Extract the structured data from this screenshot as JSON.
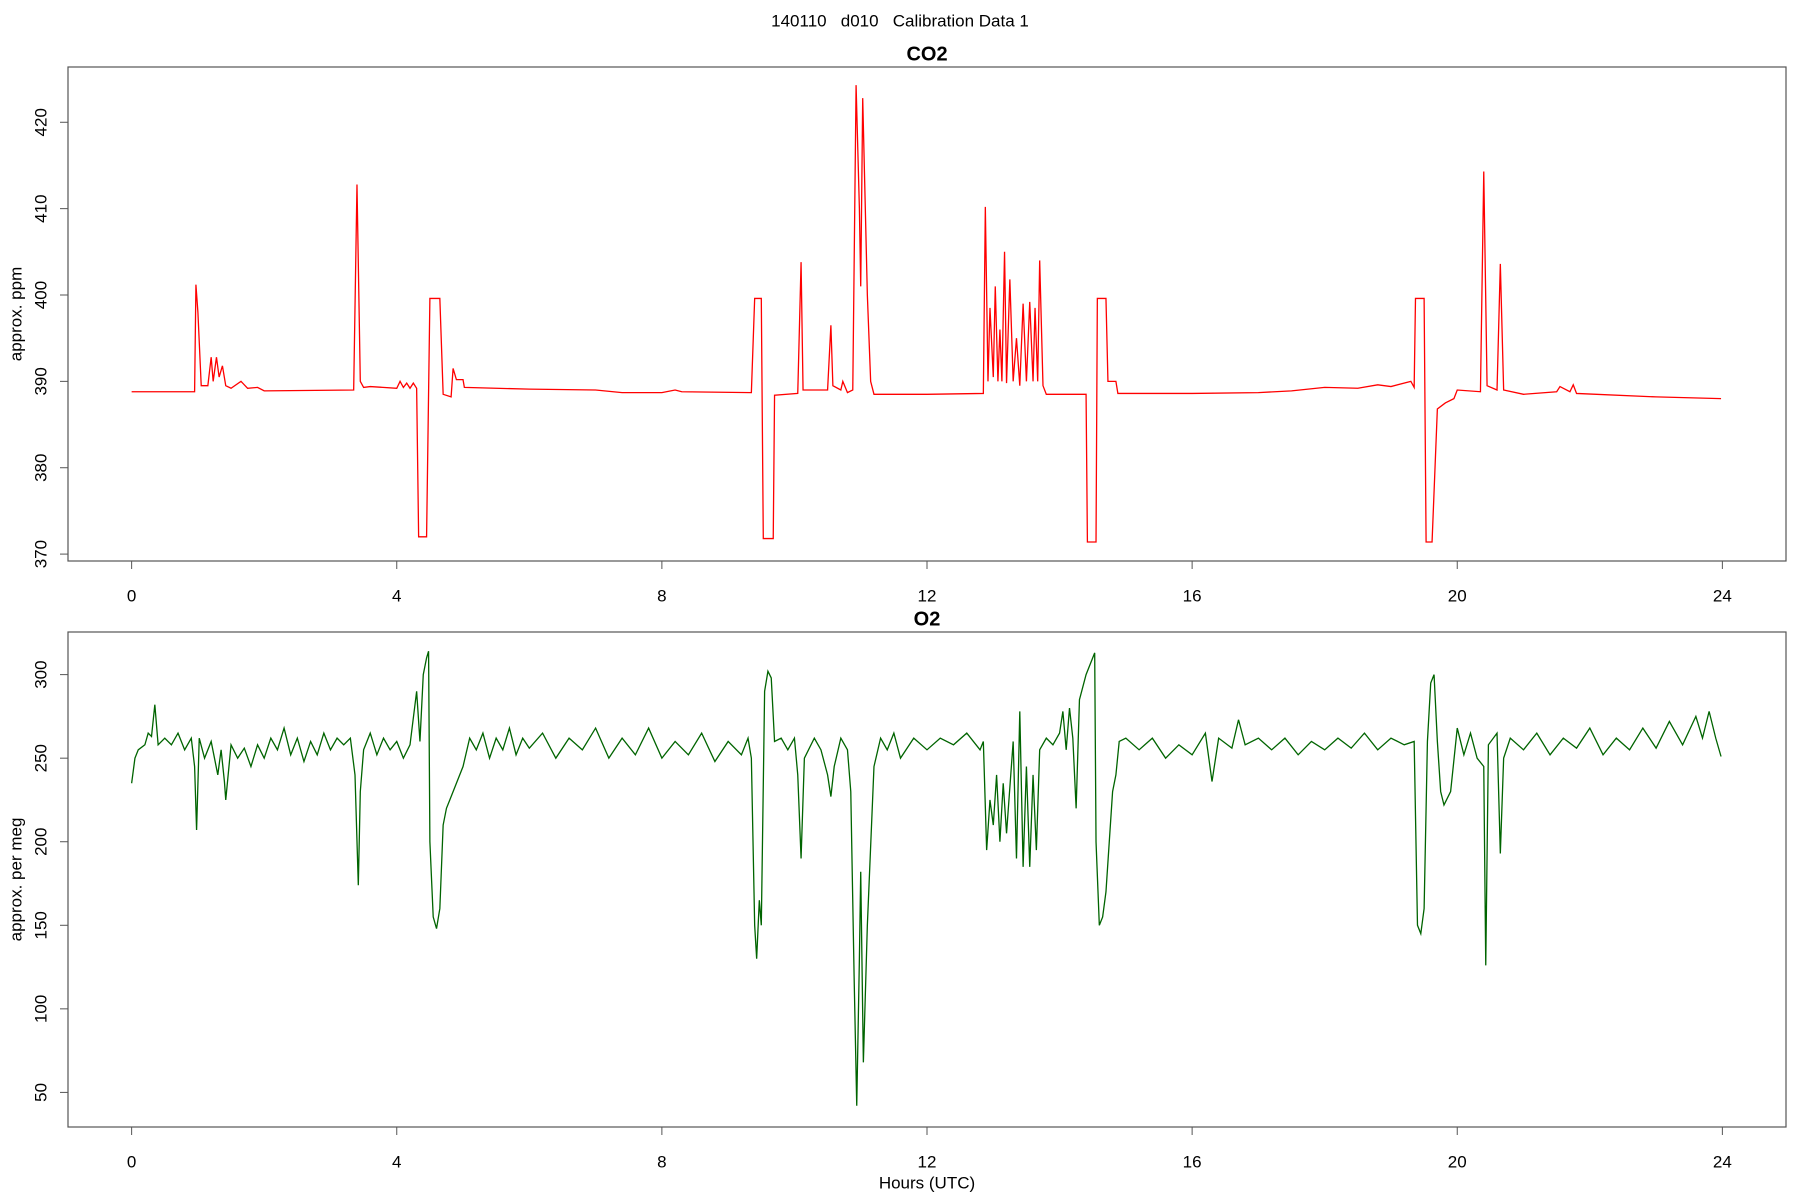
{
  "title": "140110   d010   Calibration Data 1",
  "chart_data": [
    {
      "type": "line",
      "title": "CO2",
      "ylabel": "approx. ppm",
      "color": "#ff0000",
      "xlim": [
        -0.96,
        24.96
      ],
      "xticks": [
        0,
        4,
        8,
        12,
        16,
        20,
        24
      ],
      "ylim": [
        369.2,
        426.4
      ],
      "yticks": [
        370,
        380,
        390,
        400,
        410,
        420
      ],
      "x": [
        0,
        0.95,
        0.97,
        1.0,
        1.05,
        1.15,
        1.2,
        1.23,
        1.28,
        1.32,
        1.37,
        1.42,
        1.5,
        1.65,
        1.75,
        1.9,
        2.0,
        3.35,
        3.4,
        3.45,
        3.5,
        3.6,
        4.0,
        4.05,
        4.1,
        4.15,
        4.2,
        4.25,
        4.3,
        4.33,
        4.45,
        4.5,
        4.65,
        4.7,
        4.82,
        4.85,
        4.9,
        5.0,
        5.02,
        6,
        7,
        7.4,
        8,
        8.2,
        8.3,
        9.35,
        9.4,
        9.5,
        9.53,
        9.68,
        9.7,
        10.05,
        10.1,
        10.13,
        10.5,
        10.55,
        10.58,
        10.7,
        10.73,
        10.8,
        10.88,
        10.93,
        10.98,
        11.0,
        11.03,
        11.06,
        11.1,
        11.15,
        11.2,
        12,
        12.85,
        12.88,
        12.92,
        12.95,
        13.0,
        13.03,
        13.07,
        13.1,
        13.13,
        13.17,
        13.2,
        13.25,
        13.3,
        13.35,
        13.4,
        13.45,
        13.5,
        13.55,
        13.6,
        13.63,
        13.67,
        13.7,
        13.75,
        13.8,
        14.4,
        14.42,
        14.55,
        14.57,
        14.7,
        14.73,
        14.85,
        14.88,
        16,
        17,
        17.5,
        18,
        18.5,
        18.8,
        19,
        19.3,
        19.35,
        19.37,
        19.5,
        19.53,
        19.62,
        19.7,
        19.82,
        19.95,
        20.0,
        20.35,
        20.4,
        20.45,
        20.6,
        20.65,
        20.7,
        21,
        21.5,
        21.55,
        21.7,
        21.75,
        21.8,
        23,
        23.98
      ],
      "values": [
        388.8,
        388.8,
        401.2,
        398,
        389.5,
        389.5,
        392.8,
        390,
        392.8,
        390.5,
        391.8,
        389.5,
        389.2,
        390,
        389.2,
        389.3,
        388.9,
        389,
        412.8,
        390,
        389.3,
        389.4,
        389.2,
        390,
        389.3,
        389.8,
        389.2,
        389.8,
        389.2,
        372,
        372,
        399.6,
        399.6,
        388.5,
        388.2,
        391.5,
        390.2,
        390.2,
        389.3,
        389.1,
        389,
        388.7,
        388.7,
        389,
        388.8,
        388.7,
        399.6,
        399.6,
        371.8,
        371.8,
        388.4,
        388.6,
        403.8,
        389,
        389,
        396.5,
        389.5,
        389,
        390,
        388.7,
        389,
        424.3,
        410,
        401,
        422.8,
        413,
        400,
        390,
        388.5,
        388.5,
        388.6,
        410.2,
        390,
        398.5,
        390.5,
        401,
        390,
        396,
        390,
        405,
        389.8,
        401.8,
        390,
        395,
        389.5,
        399,
        390,
        399.2,
        390,
        398.5,
        390,
        404,
        389.5,
        388.5,
        388.5,
        371.4,
        371.4,
        399.6,
        399.6,
        390,
        390,
        388.6,
        388.6,
        388.7,
        388.9,
        389.3,
        389.2,
        389.6,
        389.4,
        390,
        389.3,
        399.6,
        399.6,
        371.4,
        371.4,
        386.8,
        387.5,
        388,
        389,
        388.8,
        414.3,
        389.5,
        389,
        403.6,
        389,
        388.5,
        388.8,
        389.4,
        388.8,
        389.6,
        388.6,
        388.2,
        388
      ]
    },
    {
      "type": "line",
      "title": "O2",
      "ylabel": "approx. per meg",
      "xlabel": "Hours (UTC)",
      "color": "#006400",
      "xlim": [
        -0.96,
        24.96
      ],
      "xticks": [
        0,
        4,
        8,
        12,
        16,
        20,
        24
      ],
      "ylim": [
        29.3,
        325.5
      ],
      "yticks": [
        50,
        100,
        150,
        200,
        250,
        300
      ],
      "x": [
        0,
        0.05,
        0.1,
        0.2,
        0.25,
        0.3,
        0.35,
        0.4,
        0.5,
        0.6,
        0.7,
        0.8,
        0.9,
        0.95,
        0.98,
        1.02,
        1.1,
        1.2,
        1.3,
        1.35,
        1.4,
        1.42,
        1.5,
        1.6,
        1.7,
        1.8,
        1.9,
        2.0,
        2.1,
        2.2,
        2.3,
        2.4,
        2.5,
        2.6,
        2.7,
        2.8,
        2.9,
        3.0,
        3.1,
        3.2,
        3.3,
        3.37,
        3.42,
        3.45,
        3.5,
        3.6,
        3.7,
        3.8,
        3.9,
        4.0,
        4.1,
        4.2,
        4.3,
        4.35,
        4.4,
        4.45,
        4.48,
        4.5,
        4.55,
        4.6,
        4.65,
        4.7,
        4.75,
        4.8,
        4.9,
        5.0,
        5.1,
        5.2,
        5.3,
        5.4,
        5.5,
        5.6,
        5.7,
        5.8,
        5.9,
        6.0,
        6.2,
        6.4,
        6.6,
        6.8,
        7.0,
        7.2,
        7.4,
        7.6,
        7.8,
        8.0,
        8.2,
        8.4,
        8.6,
        8.8,
        9.0,
        9.2,
        9.3,
        9.35,
        9.4,
        9.43,
        9.47,
        9.5,
        9.55,
        9.6,
        9.65,
        9.7,
        9.8,
        9.9,
        10.0,
        10.05,
        10.1,
        10.15,
        10.3,
        10.4,
        10.5,
        10.55,
        10.6,
        10.7,
        10.8,
        10.85,
        10.9,
        10.94,
        10.98,
        11.0,
        11.04,
        11.1,
        11.2,
        11.3,
        11.4,
        11.5,
        11.6,
        11.8,
        12.0,
        12.2,
        12.4,
        12.6,
        12.8,
        12.85,
        12.9,
        12.95,
        13.0,
        13.05,
        13.1,
        13.15,
        13.2,
        13.3,
        13.35,
        13.4,
        13.45,
        13.5,
        13.55,
        13.6,
        13.65,
        13.7,
        13.8,
        13.9,
        14.0,
        14.05,
        14.1,
        14.15,
        14.2,
        14.25,
        14.3,
        14.4,
        14.5,
        14.53,
        14.55,
        14.6,
        14.65,
        14.7,
        14.8,
        14.85,
        14.9,
        15.0,
        15.2,
        15.4,
        15.6,
        15.8,
        16.0,
        16.2,
        16.3,
        16.4,
        16.6,
        16.7,
        16.8,
        17.0,
        17.2,
        17.4,
        17.6,
        17.8,
        18.0,
        18.2,
        18.4,
        18.6,
        18.8,
        19.0,
        19.2,
        19.35,
        19.4,
        19.45,
        19.5,
        19.55,
        19.6,
        19.65,
        19.7,
        19.75,
        19.8,
        19.9,
        20.0,
        20.1,
        20.2,
        20.3,
        20.4,
        20.43,
        20.47,
        20.6,
        20.65,
        20.7,
        20.8,
        21.0,
        21.2,
        21.4,
        21.6,
        21.8,
        22.0,
        22.2,
        22.4,
        22.6,
        22.8,
        23.0,
        23.2,
        23.4,
        23.6,
        23.7,
        23.8,
        23.9,
        23.98
      ],
      "values": [
        235,
        250,
        255,
        258,
        265,
        263,
        282,
        258,
        262,
        258,
        265,
        255,
        262,
        245,
        207,
        262,
        250,
        260,
        240,
        255,
        236,
        225,
        258,
        250,
        256,
        245,
        258,
        250,
        262,
        255,
        268,
        252,
        262,
        248,
        260,
        252,
        265,
        255,
        262,
        258,
        262,
        240,
        174,
        230,
        255,
        265,
        252,
        262,
        255,
        260,
        250,
        258,
        290,
        260,
        300,
        310,
        314,
        200,
        155,
        148,
        160,
        210,
        220,
        225,
        235,
        245,
        262,
        255,
        265,
        250,
        262,
        255,
        268,
        252,
        262,
        256,
        265,
        250,
        262,
        255,
        268,
        250,
        262,
        252,
        268,
        250,
        260,
        252,
        265,
        248,
        260,
        252,
        262,
        250,
        150,
        130,
        165,
        150,
        290,
        302,
        298,
        260,
        262,
        255,
        262,
        240,
        190,
        250,
        262,
        255,
        240,
        227,
        245,
        262,
        255,
        230,
        120,
        42,
        130,
        182,
        68,
        150,
        245,
        262,
        255,
        265,
        250,
        262,
        255,
        262,
        258,
        265,
        255,
        260,
        195,
        225,
        210,
        240,
        200,
        235,
        205,
        260,
        190,
        278,
        185,
        245,
        185,
        240,
        195,
        255,
        262,
        258,
        265,
        278,
        255,
        280,
        262,
        220,
        285,
        300,
        310,
        313,
        200,
        150,
        155,
        170,
        230,
        240,
        260,
        262,
        255,
        262,
        250,
        258,
        252,
        265,
        236,
        262,
        256,
        273,
        258,
        262,
        255,
        262,
        252,
        260,
        255,
        262,
        256,
        265,
        255,
        262,
        258,
        260,
        150,
        145,
        160,
        260,
        295,
        300,
        260,
        230,
        222,
        230,
        268,
        252,
        265,
        250,
        245,
        126,
        258,
        265,
        193,
        250,
        262,
        255,
        265,
        252,
        262,
        256,
        268,
        252,
        262,
        255,
        268,
        256,
        272,
        258,
        275,
        262,
        278,
        262,
        251
      ]
    }
  ]
}
